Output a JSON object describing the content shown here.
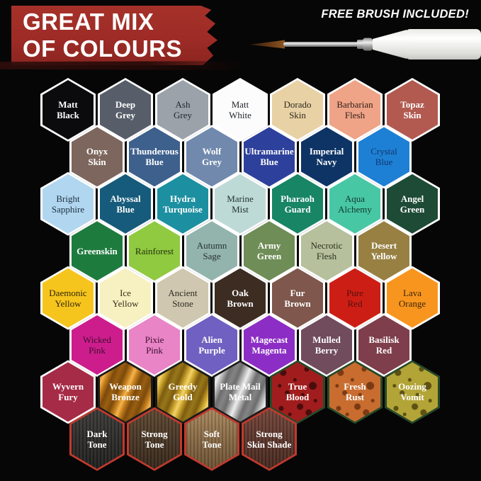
{
  "header": {
    "title_line1": "GREAT MIX",
    "title_line2": "OF COLOURS",
    "banner_color": "#9e2b26",
    "badge": "FREE BRUSH INCLUDED!"
  },
  "brush": {
    "label": "paint brush with white handle and fine tip"
  },
  "palette": {
    "border_default": "#ffffff",
    "border_wash": "#c03a2e",
    "border_effect": "#27492a",
    "border_metal": "#1b1b1b",
    "rows": [
      [
        {
          "name": "Matt Black",
          "lines": [
            "Matt",
            "Black"
          ],
          "fill": "#0b0b0d",
          "text": "#ffffff"
        },
        {
          "name": "Deep Grey",
          "lines": [
            "Deep",
            "Grey"
          ],
          "fill": "#575e69",
          "text": "#ffffff"
        },
        {
          "name": "Ash Grey",
          "lines": [
            "Ash",
            "Grey"
          ],
          "fill": "#9ba2aa",
          "text": "#23272e"
        },
        {
          "name": "Matt White",
          "lines": [
            "Matt",
            "White"
          ],
          "fill": "#fcfcfc",
          "text": "#23272e"
        },
        {
          "name": "Dorado Skin",
          "lines": [
            "Dorado",
            "Skin"
          ],
          "fill": "#e8d1a4",
          "text": "#2e2a20"
        },
        {
          "name": "Barbarian Flesh",
          "lines": [
            "Barbarian",
            "Flesh"
          ],
          "fill": "#efa387",
          "text": "#332019"
        },
        {
          "name": "Topaz Skin",
          "lines": [
            "Topaz",
            "Skin"
          ],
          "fill": "#b25a50",
          "text": "#ffffff"
        }
      ],
      [
        {
          "name": "Onyx Skin",
          "lines": [
            "Onyx",
            "Skin"
          ],
          "fill": "#7d665d",
          "text": "#ffffff"
        },
        {
          "name": "Thunderous Blue",
          "lines": [
            "Thunderous",
            "Blue"
          ],
          "fill": "#3d608d",
          "text": "#ffffff"
        },
        {
          "name": "Wolf Grey",
          "lines": [
            "Wolf",
            "Grey"
          ],
          "fill": "#7089ad",
          "text": "#ffffff"
        },
        {
          "name": "Ultramarine Blue",
          "lines": [
            "Ultramarine",
            "Blue"
          ],
          "fill": "#2d409c",
          "text": "#ffffff"
        },
        {
          "name": "Imperial Navy",
          "lines": [
            "Imperial",
            "Navy"
          ],
          "fill": "#0e3466",
          "text": "#ffffff"
        },
        {
          "name": "Crystal Blue",
          "lines": [
            "Crystal",
            "Blue"
          ],
          "fill": "#1d80d4",
          "text": "#12366e"
        }
      ],
      [
        {
          "name": "Bright Sapphire",
          "lines": [
            "Bright",
            "Sapphire"
          ],
          "fill": "#b1d6ef",
          "text": "#1d2f42"
        },
        {
          "name": "Abyssal Blue",
          "lines": [
            "Abyssal",
            "Blue"
          ],
          "fill": "#165b7b",
          "text": "#ffffff"
        },
        {
          "name": "Hydra Turquoise",
          "lines": [
            "Hydra",
            "Turquoise"
          ],
          "fill": "#1c90a1",
          "text": "#ffffff"
        },
        {
          "name": "Marine Mist",
          "lines": [
            "Marine",
            "Mist"
          ],
          "fill": "#bedad7",
          "text": "#223430"
        },
        {
          "name": "Pharaoh Guard",
          "lines": [
            "Pharaoh",
            "Guard"
          ],
          "fill": "#188565",
          "text": "#ffffff"
        },
        {
          "name": "Aqua Alchemy",
          "lines": [
            "Aqua",
            "Alchemy"
          ],
          "fill": "#48c7a5",
          "text": "#10382c"
        },
        {
          "name": "Angel Green",
          "lines": [
            "Angel",
            "Green"
          ],
          "fill": "#1e4b36",
          "text": "#ffffff"
        }
      ],
      [
        {
          "name": "Greenskin",
          "lines": [
            "Greenskin"
          ],
          "fill": "#1e7b3e",
          "text": "#ffffff"
        },
        {
          "name": "Rainforest",
          "lines": [
            "Rainforest"
          ],
          "fill": "#90ca40",
          "text": "#203012"
        },
        {
          "name": "Autumn Sage",
          "lines": [
            "Autumn",
            "Sage"
          ],
          "fill": "#93b4ac",
          "text": "#26322e"
        },
        {
          "name": "Army Green",
          "lines": [
            "Army",
            "Green"
          ],
          "fill": "#6f8d56",
          "text": "#ffffff"
        },
        {
          "name": "Necrotic Flesh",
          "lines": [
            "Necrotic",
            "Flesh"
          ],
          "fill": "#b6c09c",
          "text": "#2b2f1e"
        },
        {
          "name": "Desert Yellow",
          "lines": [
            "Desert",
            "Yellow"
          ],
          "fill": "#978042",
          "text": "#ffffff"
        }
      ],
      [
        {
          "name": "Daemonic Yellow",
          "lines": [
            "Daemonic",
            "Yellow"
          ],
          "fill": "#f6c51d",
          "text": "#332708"
        },
        {
          "name": "Ice Yellow",
          "lines": [
            "Ice",
            "Yellow"
          ],
          "fill": "#f7f0c0",
          "text": "#33301a"
        },
        {
          "name": "Ancient Stone",
          "lines": [
            "Ancient",
            "Stone"
          ],
          "fill": "#d0c7b0",
          "text": "#2e2b20"
        },
        {
          "name": "Oak Brown",
          "lines": [
            "Oak",
            "Brown"
          ],
          "fill": "#3c2c22",
          "text": "#ffffff"
        },
        {
          "name": "Fur Brown",
          "lines": [
            "Fur",
            "Brown"
          ],
          "fill": "#7f574c",
          "text": "#ffffff"
        },
        {
          "name": "Pure Red",
          "lines": [
            "Pure",
            "Red"
          ],
          "fill": "#cd1e15",
          "text": "#55100a"
        },
        {
          "name": "Lava Orange",
          "lines": [
            "Lava",
            "Orange"
          ],
          "fill": "#f8951f",
          "text": "#3c2508"
        }
      ],
      [
        {
          "name": "Wicked Pink",
          "lines": [
            "Wicked",
            "Pink"
          ],
          "fill": "#cd1d8d",
          "text": "#400f2e"
        },
        {
          "name": "Pixie Pink",
          "lines": [
            "Pixie",
            "Pink"
          ],
          "fill": "#e984c6",
          "text": "#3c1030"
        },
        {
          "name": "Alien Purple",
          "lines": [
            "Alien",
            "Purple"
          ],
          "fill": "#7060c1",
          "text": "#ffffff"
        },
        {
          "name": "Magecast Magenta",
          "lines": [
            "Magecast",
            "Magenta"
          ],
          "fill": "#8c2dc5",
          "text": "#ffffff"
        },
        {
          "name": "Mulled Berry",
          "lines": [
            "Mulled",
            "Berry"
          ],
          "fill": "#704c5d",
          "text": "#ffffff"
        },
        {
          "name": "Basilisk Red",
          "lines": [
            "Basilisk",
            "Red"
          ],
          "fill": "#7e3e4b",
          "text": "#ffffff"
        }
      ],
      [
        {
          "name": "Wyvern Fury",
          "lines": [
            "Wyvern",
            "Fury"
          ],
          "fill": "#a62b46",
          "text": "#ffffff"
        },
        {
          "name": "Weapon Bronze",
          "lines": [
            "Weapon",
            "Bronze"
          ],
          "fill": "#c67f1d",
          "text": "#ffffff",
          "effect": {
            "type": "metal",
            "shades": [
              "#7c4a0d",
              "#c67f1d",
              "#f4b44e",
              "#9a5f10"
            ]
          }
        },
        {
          "name": "Greedy Gold",
          "lines": [
            "Greedy",
            "Gold"
          ],
          "fill": "#caa32c",
          "text": "#ffffff",
          "effect": {
            "type": "metal",
            "shades": [
              "#7e5c10",
              "#caa32c",
              "#f2d269",
              "#97781a"
            ]
          }
        },
        {
          "name": "Plate Mail Metal",
          "lines": [
            "Plate Mail",
            "Metal"
          ],
          "fill": "#b9b9b9",
          "text": "#ffffff",
          "effect": {
            "type": "metal",
            "shades": [
              "#6d6d6d",
              "#b9b9b9",
              "#ededed",
              "#848484"
            ]
          }
        },
        {
          "name": "True Blood",
          "lines": [
            "True",
            "Blood"
          ],
          "fill": "#a11d1d",
          "text": "#ffffff",
          "effect": {
            "type": "splatter",
            "spot": "#4a0c0c"
          }
        },
        {
          "name": "Fresh Rust",
          "lines": [
            "Fresh",
            "Rust"
          ],
          "fill": "#c86d2f",
          "text": "#ffffff",
          "effect": {
            "type": "splatter",
            "spot": "#7a3a14"
          }
        },
        {
          "name": "Oozing Vomit",
          "lines": [
            "Oozing",
            "Vomit"
          ],
          "fill": "#b3a437",
          "text": "#ffffff",
          "effect": {
            "type": "splatter",
            "spot": "#5e5113"
          }
        }
      ],
      [
        {
          "name": "Dark Tone",
          "lines": [
            "Dark",
            "Tone"
          ],
          "fill": "#2d2c2a",
          "text": "#ffffff",
          "effect": {
            "type": "wash",
            "top": "#3b3a37",
            "bottom": "#1e1e1c"
          }
        },
        {
          "name": "Strong Tone",
          "lines": [
            "Strong",
            "Tone"
          ],
          "fill": "#4a3827",
          "text": "#ffffff",
          "effect": {
            "type": "wash",
            "top": "#5d462f",
            "bottom": "#352519"
          }
        },
        {
          "name": "Soft Tone",
          "lines": [
            "Soft",
            "Tone"
          ],
          "fill": "#8a6c47",
          "text": "#ffffff",
          "effect": {
            "type": "wash",
            "top": "#a8875d",
            "bottom": "#6b5031"
          }
        },
        {
          "name": "Strong Skin Shade",
          "lines": [
            "Strong",
            "Skin Shade"
          ],
          "fill": "#5d362c",
          "text": "#ffffff",
          "effect": {
            "type": "wash",
            "top": "#74443a",
            "bottom": "#46271d"
          }
        }
      ]
    ]
  }
}
